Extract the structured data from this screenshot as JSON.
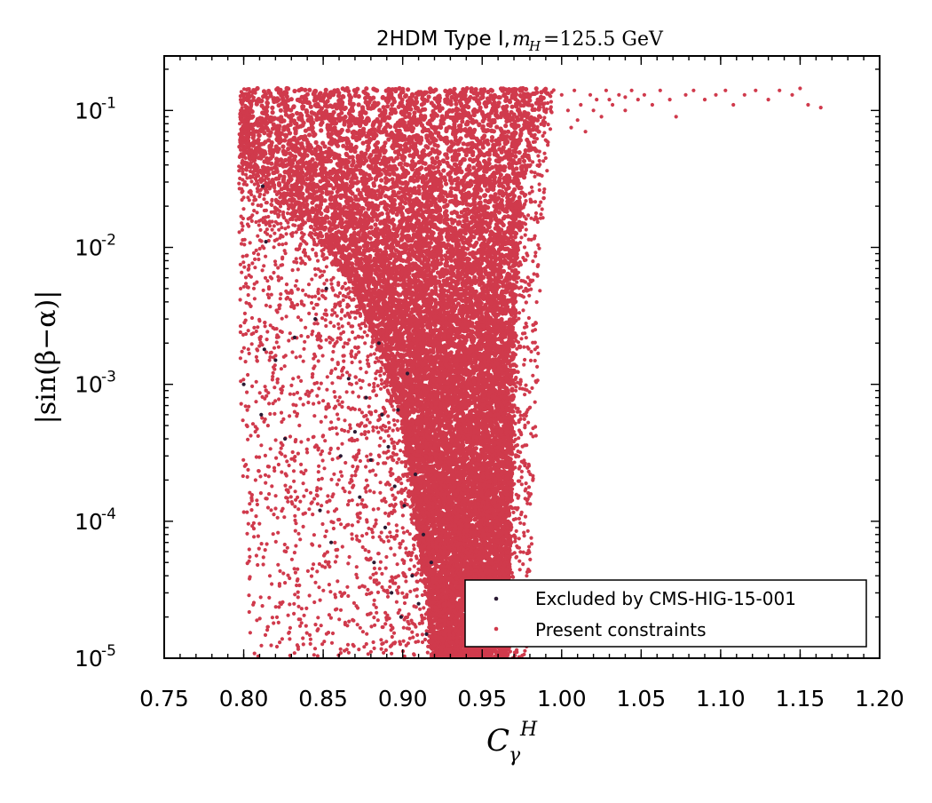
{
  "chart_data": {
    "type": "scatter",
    "title_text": "2HDM Type I, ",
    "title_math_var": "m",
    "title_math_sub": "H",
    "title_math_rest": " =125.5 GeV",
    "xlabel_main": "C",
    "xlabel_sub": "γ",
    "xlabel_sup": "H",
    "ylabel": "|sin(β−α)|",
    "xlim": [
      0.75,
      1.2
    ],
    "ylim": [
      1e-05,
      0.25
    ],
    "yscale": "log",
    "x_ticks": [
      "0.75",
      "0.80",
      "0.85",
      "0.90",
      "0.95",
      "1.00",
      "1.05",
      "1.10",
      "1.15",
      "1.20"
    ],
    "y_tick_base": "10",
    "y_tick_exponents": [
      "-5",
      "-4",
      "-3",
      "-2",
      "-1"
    ],
    "legend_position": "lower-right",
    "series": [
      {
        "name": "Excluded by CMS-HIG-15-001",
        "color": "#2a1a33",
        "points": [
          [
            0.8,
            0.001
          ],
          [
            0.811,
            0.0006
          ],
          [
            0.813,
            0.0018
          ],
          [
            0.812,
            0.028
          ],
          [
            0.814,
            0.011
          ],
          [
            0.82,
            0.0015
          ],
          [
            0.826,
            0.0004
          ],
          [
            0.832,
            0.0022
          ],
          [
            0.845,
            0.003
          ],
          [
            0.848,
            0.00012
          ],
          [
            0.852,
            0.005
          ],
          [
            0.855,
            7e-05
          ],
          [
            0.861,
            0.0003
          ],
          [
            0.866,
            0.0011
          ],
          [
            0.87,
            0.00045
          ],
          [
            0.873,
            0.00015
          ],
          [
            0.877,
            0.0008
          ],
          [
            0.88,
            0.00028
          ],
          [
            0.882,
            5e-05
          ],
          [
            0.885,
            0.002
          ],
          [
            0.887,
            0.0006
          ],
          [
            0.889,
            9e-05
          ],
          [
            0.891,
            0.00035
          ],
          [
            0.893,
            3e-05
          ],
          [
            0.895,
            0.00018
          ],
          [
            0.897,
            0.00065
          ],
          [
            0.899,
            2e-05
          ],
          [
            0.901,
            0.00013
          ],
          [
            0.903,
            0.0012
          ],
          [
            0.906,
            4e-05
          ],
          [
            0.908,
            0.00022
          ],
          [
            0.91,
            2.5e-05
          ],
          [
            0.913,
            8e-05
          ],
          [
            0.915,
            1.5e-05
          ],
          [
            0.918,
            5e-05
          ]
        ]
      },
      {
        "name": "Present constraints",
        "color": "#d03a4c",
        "region": {
          "left_boundary": [
            [
              0.14,
              0.808
            ],
            [
              0.1,
              0.804
            ],
            [
              0.06,
              0.803
            ],
            [
              0.04,
              0.808
            ],
            [
              0.02,
              0.83
            ],
            [
              0.01,
              0.852
            ],
            [
              0.005,
              0.87
            ],
            [
              0.002,
              0.884
            ],
            [
              0.001,
              0.893
            ],
            [
              0.0005,
              0.9
            ],
            [
              0.0002,
              0.905
            ],
            [
              0.0001,
              0.908
            ],
            [
              5e-05,
              0.912
            ],
            [
              2e-05,
              0.916
            ],
            [
              1e-05,
              0.918
            ]
          ],
          "right_boundary": [
            [
              0.14,
              0.99
            ],
            [
              0.1,
              0.988
            ],
            [
              0.06,
              0.982
            ],
            [
              0.03,
              0.976
            ],
            [
              0.01,
              0.972
            ],
            [
              0.001,
              0.97
            ],
            [
              0.0001,
              0.968
            ],
            [
              1e-05,
              0.966
            ]
          ],
          "scatter_spread": [
            [
              0.14,
              0.798,
              0.995
            ],
            [
              0.05,
              0.797,
              0.992
            ],
            [
              0.01,
              0.797,
              0.987
            ],
            [
              0.001,
              0.798,
              0.985
            ],
            [
              0.0001,
              0.8,
              0.982
            ],
            [
              1e-05,
              0.805,
              0.978
            ]
          ],
          "ymax": 0.145
        },
        "tail_points": [
          [
            1.0,
            0.13
          ],
          [
            1.004,
            0.1
          ],
          [
            1.008,
            0.14
          ],
          [
            1.012,
            0.11
          ],
          [
            1.015,
            0.07
          ],
          [
            1.018,
            0.13
          ],
          [
            1.022,
            0.12
          ],
          [
            1.025,
            0.09
          ],
          [
            1.028,
            0.14
          ],
          [
            1.032,
            0.11
          ],
          [
            1.036,
            0.13
          ],
          [
            1.04,
            0.1
          ],
          [
            1.044,
            0.14
          ],
          [
            1.048,
            0.12
          ],
          [
            1.052,
            0.13
          ],
          [
            1.057,
            0.11
          ],
          [
            1.062,
            0.14
          ],
          [
            1.068,
            0.12
          ],
          [
            1.072,
            0.09
          ],
          [
            1.078,
            0.13
          ],
          [
            1.083,
            0.14
          ],
          [
            1.09,
            0.12
          ],
          [
            1.097,
            0.13
          ],
          [
            1.103,
            0.14
          ],
          [
            1.108,
            0.11
          ],
          [
            1.115,
            0.13
          ],
          [
            1.122,
            0.14
          ],
          [
            1.13,
            0.12
          ],
          [
            1.137,
            0.14
          ],
          [
            1.145,
            0.13
          ],
          [
            1.15,
            0.145
          ],
          [
            1.155,
            0.11
          ],
          [
            1.163,
            0.105
          ],
          [
            1.01,
            0.085
          ],
          [
            1.006,
            0.075
          ],
          [
            1.02,
            0.1
          ],
          [
            1.03,
            0.12
          ],
          [
            1.04,
            0.125
          ]
        ]
      }
    ]
  }
}
